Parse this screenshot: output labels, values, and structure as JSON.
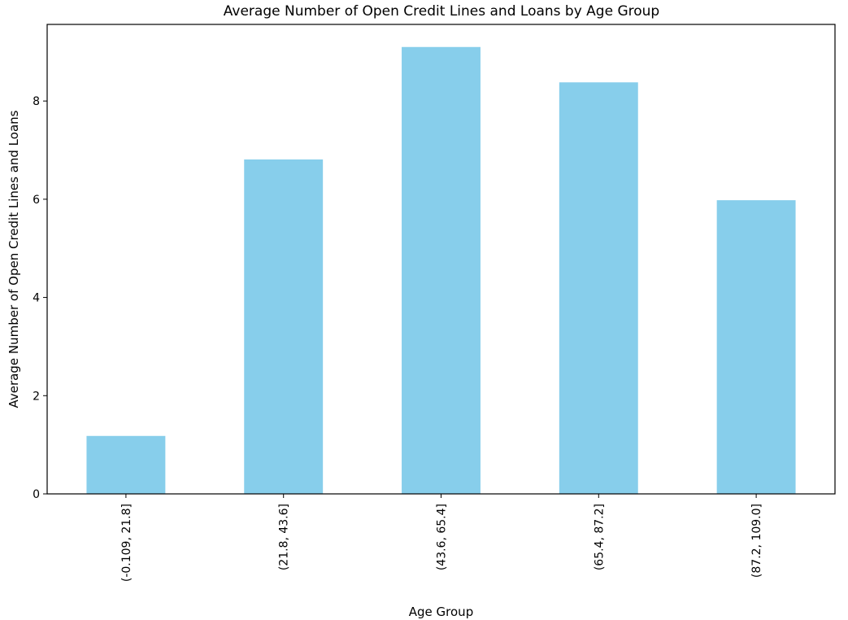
{
  "chart_data": {
    "type": "bar",
    "title": "Average Number of Open Credit Lines and Loans by Age Group",
    "xlabel": "Age Group",
    "ylabel": "Average Number of Open Credit Lines and Loans",
    "categories": [
      "(-0.109, 21.8]",
      "(21.8, 43.6]",
      "(43.6, 65.4]",
      "(65.4, 87.2]",
      "(87.2, 109.0]"
    ],
    "values": [
      1.18,
      6.81,
      9.1,
      8.38,
      5.98
    ],
    "ylim": [
      0,
      9.56
    ],
    "yticks": [
      "0",
      "2",
      "4",
      "6",
      "8"
    ],
    "bar_color": "#87ceeb",
    "grid": false,
    "legend": "none"
  }
}
